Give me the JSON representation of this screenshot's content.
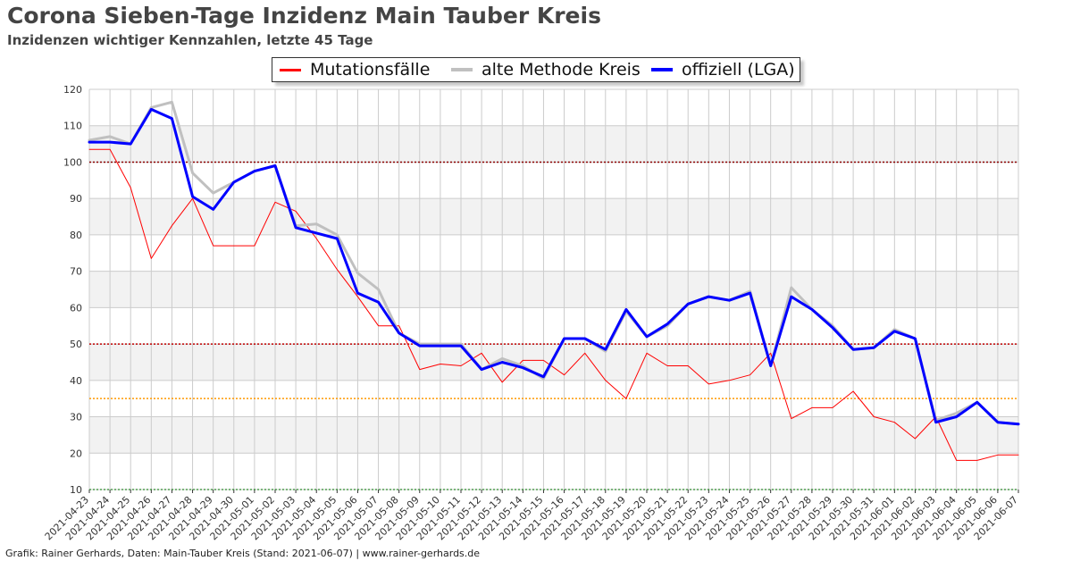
{
  "header": {
    "title": "Corona Sieben-Tage Inzidenz Main Tauber Kreis",
    "subtitle": "Inzidenzen wichtiger Kennzahlen, letzte 45 Tage"
  },
  "footer": {
    "credit": "Grafik: Rainer Gerhards, Daten: Main-Tauber Kreis (Stand: 2021-06-07) | www.rainer-gerhards.de"
  },
  "colors": {
    "mutation": "#ff0000",
    "alt": "#c0c0c0",
    "official": "#0000ff",
    "thresh100": "#8b0000",
    "thresh50": "#c00000",
    "thresh35": "#ff9900",
    "band": "#f2f2f2",
    "grid": "#cccccc"
  },
  "chart_data": {
    "type": "line",
    "x": [
      "2021-04-23",
      "2021-04-24",
      "2021-04-25",
      "2021-04-26",
      "2021-04-27",
      "2021-04-28",
      "2021-04-29",
      "2021-04-30",
      "2021-05-01",
      "2021-05-02",
      "2021-05-03",
      "2021-05-04",
      "2021-05-05",
      "2021-05-06",
      "2021-05-07",
      "2021-05-08",
      "2021-05-09",
      "2021-05-10",
      "2021-05-11",
      "2021-05-12",
      "2021-05-13",
      "2021-05-14",
      "2021-05-15",
      "2021-05-16",
      "2021-05-17",
      "2021-05-18",
      "2021-05-19",
      "2021-05-20",
      "2021-05-21",
      "2021-05-22",
      "2021-05-23",
      "2021-05-24",
      "2021-05-25",
      "2021-05-26",
      "2021-05-27",
      "2021-05-28",
      "2021-05-29",
      "2021-05-30",
      "2021-05-31",
      "2021-06-01",
      "2021-06-02",
      "2021-06-03",
      "2021-06-04",
      "2021-06-05",
      "2021-06-06",
      "2021-06-07"
    ],
    "ylim": [
      10,
      120
    ],
    "yticks": [
      10,
      20,
      30,
      40,
      50,
      60,
      70,
      80,
      90,
      100,
      110,
      120
    ],
    "grid": true,
    "legend_position": "top-center",
    "thresholds": [
      {
        "value": 100,
        "color": "#8b0000"
      },
      {
        "value": 50,
        "color": "#c00000"
      },
      {
        "value": 35,
        "color": "#ff9900"
      }
    ],
    "series": [
      {
        "name": "Mutationsfälle",
        "color": "#ff0000",
        "width": 1,
        "values": [
          103.5,
          103.5,
          93,
          73.5,
          82.5,
          90,
          77,
          77,
          77,
          89,
          86.5,
          79,
          70.5,
          63,
          55,
          55,
          43,
          44.5,
          44,
          47.5,
          39.5,
          45.5,
          45.5,
          41.5,
          47.5,
          40,
          35,
          47.5,
          44,
          44,
          39,
          40,
          41.5,
          47.5,
          29.5,
          32.5,
          32.5,
          37,
          30,
          28.5,
          24,
          30,
          18,
          18,
          19.5,
          19.5
        ]
      },
      {
        "name": "alte Methode Kreis",
        "color": "#c0c0c0",
        "width": 3,
        "values": [
          106,
          107,
          105,
          115,
          116.5,
          97,
          91.5,
          94.5,
          97.5,
          99,
          82.5,
          83,
          80,
          69.5,
          65,
          53,
          50,
          50,
          50,
          43,
          46,
          44,
          40.5,
          51.5,
          51.5,
          48,
          59,
          52,
          55,
          61,
          63,
          62,
          64.5,
          44,
          65.5,
          59.5,
          55,
          48.5,
          49,
          54,
          51.5,
          29,
          31,
          34,
          28.5,
          28
        ]
      },
      {
        "name": "offiziell (LGA)",
        "color": "#0000ff",
        "width": 3,
        "values": [
          105.5,
          105.5,
          105,
          114.5,
          112,
          90.5,
          87,
          94.5,
          97.5,
          99,
          82,
          80.5,
          79,
          64,
          61.5,
          53,
          49.5,
          49.5,
          49.5,
          43,
          45,
          43.5,
          41,
          51.5,
          51.5,
          48.5,
          59.5,
          52,
          55.5,
          61,
          63,
          62,
          64,
          44,
          63,
          59.5,
          54.5,
          48.5,
          49,
          53.5,
          51.5,
          28.5,
          30,
          34,
          28.5,
          28
        ]
      }
    ]
  }
}
